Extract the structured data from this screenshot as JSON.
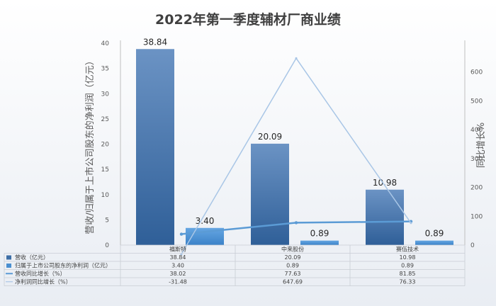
{
  "chart_data": {
    "type": "bar",
    "title": "2022年第一季度辅材厂商业绩",
    "categories": [
      "福斯特",
      "中来股份",
      "赛伍技术"
    ],
    "y_left_label": "营收/归属于上市公司股东的净利润（亿元）",
    "y_right_label": "同比增长%",
    "y_left_range": [
      0,
      40
    ],
    "y_left_ticks": [
      0,
      5,
      10,
      15,
      20,
      25,
      30,
      35,
      40
    ],
    "y_right_range": [
      0,
      700
    ],
    "y_right_ticks": [
      0,
      100,
      200,
      300,
      400,
      500,
      600
    ],
    "series": [
      {
        "name": "营收（亿元）",
        "type": "bar",
        "axis": "left",
        "color": "#3d6ea6",
        "values": [
          38.84,
          20.09,
          10.98
        ],
        "labels": [
          "38.84",
          "20.09",
          "10.98"
        ],
        "table": [
          "38.84",
          "20.09",
          "10.98"
        ]
      },
      {
        "name": "归属于上市公司股东的净利润（亿元）",
        "type": "bar",
        "axis": "left",
        "color": "#4a8fd0",
        "values": [
          3.4,
          0.89,
          0.89
        ],
        "labels": [
          "3.40",
          "0.89",
          "0.89"
        ],
        "table": [
          "3.40",
          "0.89",
          "0.89"
        ]
      },
      {
        "name": "营收同比增长（%）",
        "type": "line",
        "axis": "right",
        "color": "#5b9bd5",
        "values": [
          38.02,
          77.63,
          81.85
        ],
        "table": [
          "38.02",
          "77.63",
          "81.85"
        ]
      },
      {
        "name": "净利润同比增长（%）",
        "type": "line",
        "axis": "right",
        "color": "#a9c6e6",
        "values": [
          -31.48,
          647.69,
          76.33
        ],
        "table": [
          "-31.48",
          "647.69",
          "76.33"
        ]
      }
    ],
    "legend_placement": "data-table",
    "grid": false
  }
}
